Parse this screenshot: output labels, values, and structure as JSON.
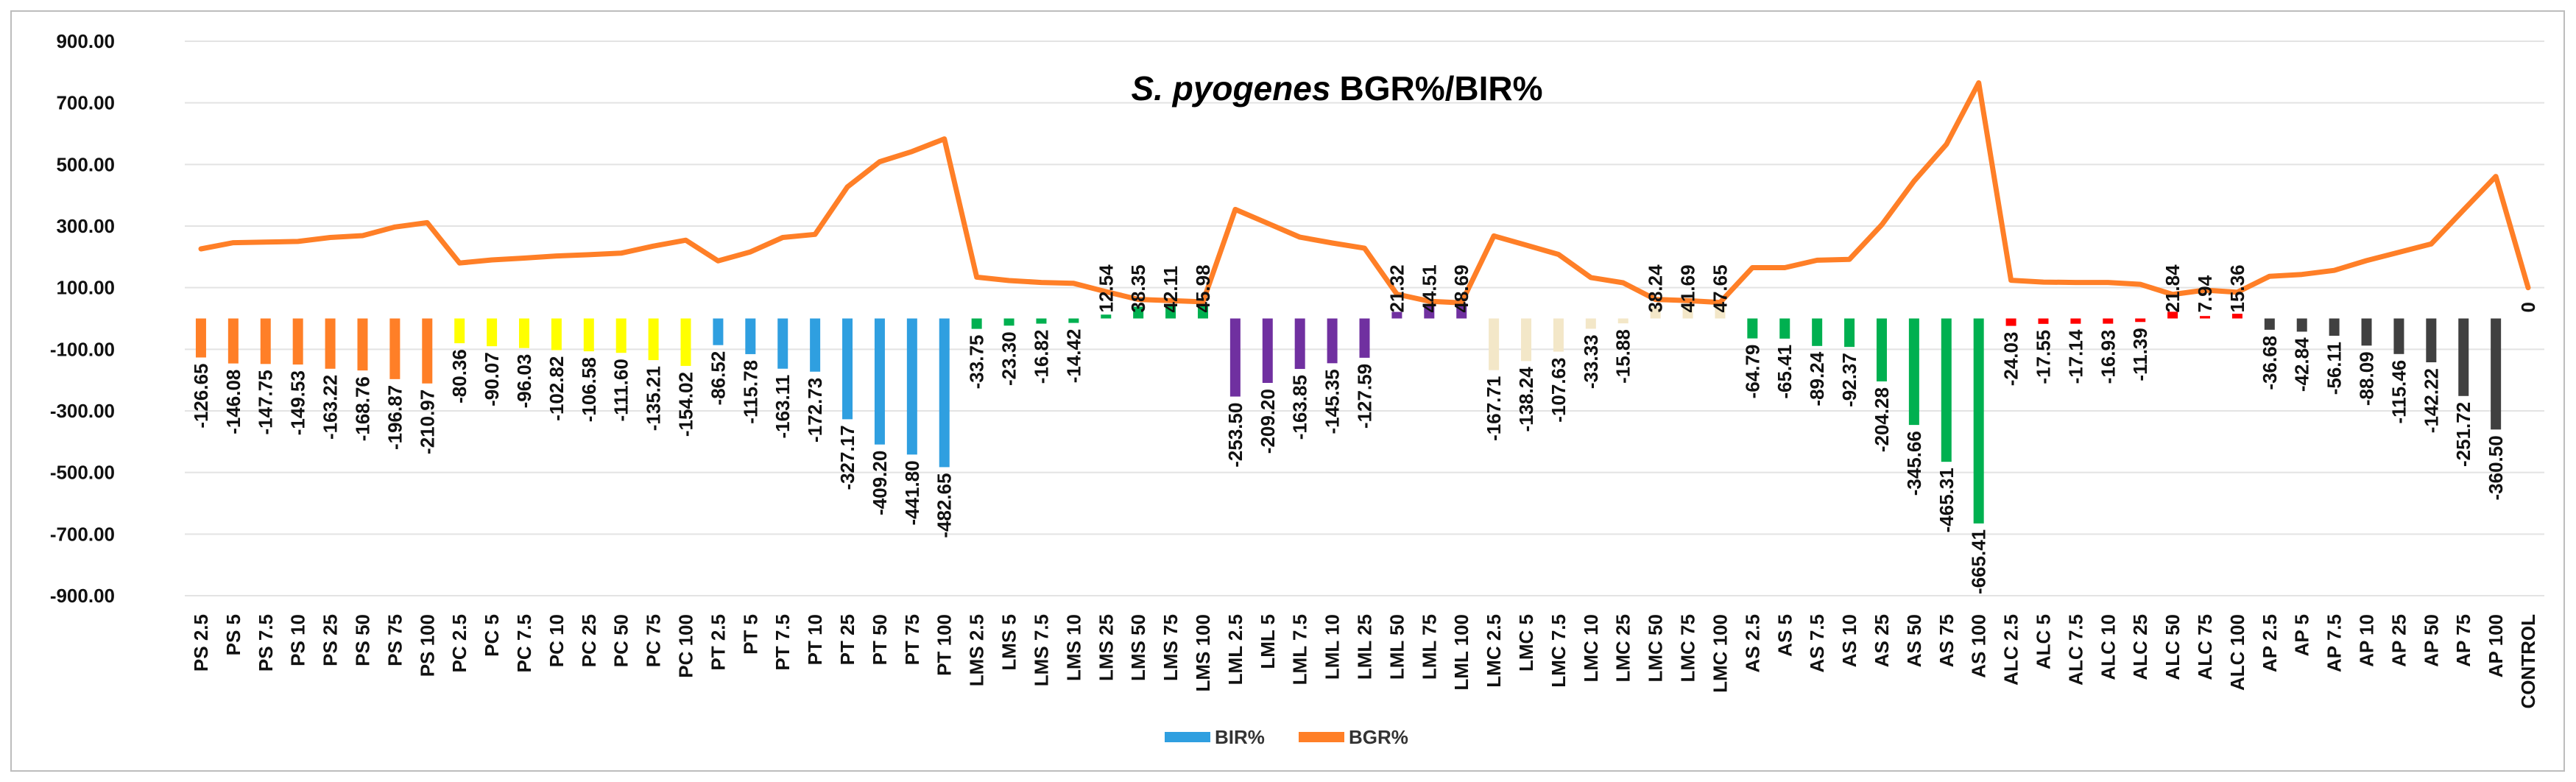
{
  "chart_data": {
    "type": "bar+line",
    "title_italic": "S. pyogenes",
    "title_rest": "BGR%/BIR%",
    "ylim": [
      -900,
      900
    ],
    "yticks": [
      -900,
      -700,
      -500,
      -300,
      -100,
      100,
      300,
      500,
      700,
      900
    ],
    "ytick_labels": [
      "-900.00",
      "-700.00",
      "-500.00",
      "-300.00",
      "-100.00",
      "100.00",
      "300.00",
      "500.00",
      "700.00",
      "900.00"
    ],
    "grid": true,
    "legend_position": "bottom-center",
    "categories": [
      "PS 2.5",
      "PS 5",
      "PS 7.5",
      "PS 10",
      "PS 25",
      "PS 50",
      "PS 75",
      "PS 100",
      "PC 2.5",
      "PC 5",
      "PC 7.5",
      "PC 10",
      "PC 25",
      "PC 50",
      "PC 75",
      "PC 100",
      "PT 2.5",
      "PT 5",
      "PT 7.5",
      "PT 10",
      "PT 25",
      "PT 50",
      "PT 75",
      "PT 100",
      "LMS 2.5",
      "LMS 5",
      "LMS 7.5",
      "LMS 10",
      "LMS 25",
      "LMS 50",
      "LMS 75",
      "LMS 100",
      "LML 2.5",
      "LML 5",
      "LML 7.5",
      "LML 10",
      "LML 25",
      "LML 50",
      "LML 75",
      "LML 100",
      "LMC 2.5",
      "LMC 5",
      "LMC 7.5",
      "LMC 10",
      "LMC 25",
      "LMC 50",
      "LMC 75",
      "LMC 100",
      "AS 2.5",
      "AS 5",
      "AS 7.5",
      "AS 10",
      "AS 25",
      "AS 50",
      "AS 75",
      "AS 100",
      "ALC 2.5",
      "ALC 5",
      "ALC 7.5",
      "ALC 10",
      "ALC 25",
      "ALC 50",
      "ALC 75",
      "ALC 100",
      "AP 2.5",
      "AP 5",
      "AP 7.5",
      "AP 10",
      "AP 25",
      "AP 50",
      "AP 75",
      "AP 100",
      "CONTROL"
    ],
    "bar_labels": [
      "-126.65",
      "-146.08",
      "-147.75",
      "-149.53",
      "-163.22",
      "-168.76",
      "-196.87",
      "-210.97",
      "-80.36",
      "-90.07",
      "-96.03",
      "-102.82",
      "-106.58",
      "-111.60",
      "-135.21",
      "-154.02",
      "-86.52",
      "-115.78",
      "-163.11",
      "-172.73",
      "-327.17",
      "-409.20",
      "-441.80",
      "-482.65",
      "-33.75",
      "-23.30",
      "-16.82",
      "-14.42",
      "12.54",
      "38.35",
      "42.11",
      "45.98",
      "-253.50",
      "-209.20",
      "-163.85",
      "-145.35",
      "-127.59",
      "21.32",
      "44.51",
      "48.69",
      "-167.71",
      "-138.24",
      "-107.63",
      "-33.33",
      "-15.88",
      "38.24",
      "41.69",
      "47.65",
      "-64.79",
      "-65.41",
      "-89.24",
      "-92.37",
      "-204.28",
      "-345.66",
      "-465.31",
      "-665.41",
      "-24.03",
      "-17.55",
      "-17.14",
      "-16.93",
      "-11.39",
      "21.84",
      "7.94",
      "15.36",
      "-36.68",
      "-42.84",
      "-56.11",
      "-88.09",
      "-115.46",
      "-142.22",
      "-251.72",
      "-360.50",
      "0"
    ],
    "series": [
      {
        "name": "BIR%",
        "type": "bar",
        "values": [
          -126.65,
          -146.08,
          -147.75,
          -149.53,
          -163.22,
          -168.76,
          -196.87,
          -210.97,
          -80.36,
          -90.07,
          -96.03,
          -102.82,
          -106.58,
          -111.6,
          -135.21,
          -154.02,
          -86.52,
          -115.78,
          -163.11,
          -172.73,
          -327.17,
          -409.2,
          -441.8,
          -482.65,
          -33.75,
          -23.3,
          -16.82,
          -14.42,
          12.54,
          38.35,
          42.11,
          45.98,
          -253.5,
          -209.2,
          -163.85,
          -145.35,
          -127.59,
          21.32,
          44.51,
          48.69,
          -167.71,
          -138.24,
          -107.63,
          -33.33,
          -15.88,
          38.24,
          41.69,
          47.65,
          -64.79,
          -65.41,
          -89.24,
          -92.37,
          -204.28,
          -345.66,
          -465.31,
          -665.41,
          -24.03,
          -17.55,
          -17.14,
          -16.93,
          -11.39,
          21.84,
          7.94,
          15.36,
          -36.68,
          -42.84,
          -56.11,
          -88.09,
          -115.46,
          -142.22,
          -251.72,
          -360.5,
          0
        ]
      },
      {
        "name": "BGR%",
        "type": "line",
        "values": [
          226,
          246,
          248,
          250,
          263,
          269,
          297,
          311,
          180,
          190,
          196,
          203,
          207,
          212,
          235,
          254,
          187,
          216,
          263,
          273,
          427,
          509,
          542,
          583,
          134,
          123,
          117,
          114,
          87,
          62,
          58,
          54,
          354,
          309,
          264,
          245,
          228,
          79,
          56,
          51,
          268,
          238,
          208,
          133,
          116,
          62,
          58,
          52,
          165,
          165,
          189,
          192,
          304,
          446,
          565,
          765,
          124,
          118,
          117,
          117,
          111,
          78,
          92,
          85,
          137,
          143,
          156,
          188,
          215,
          242,
          352,
          461,
          100
        ]
      }
    ],
    "group_colors": [
      "#ff7f27",
      "#ffff00",
      "#2f9fe0",
      "#00b050",
      "#7030a0",
      "#f3e7c8",
      "#00b050",
      "#ff0000",
      "#404040"
    ],
    "control_color": "#404040",
    "line_color": "#ff7f27",
    "legend_bar_color": "#2f9fe0"
  }
}
